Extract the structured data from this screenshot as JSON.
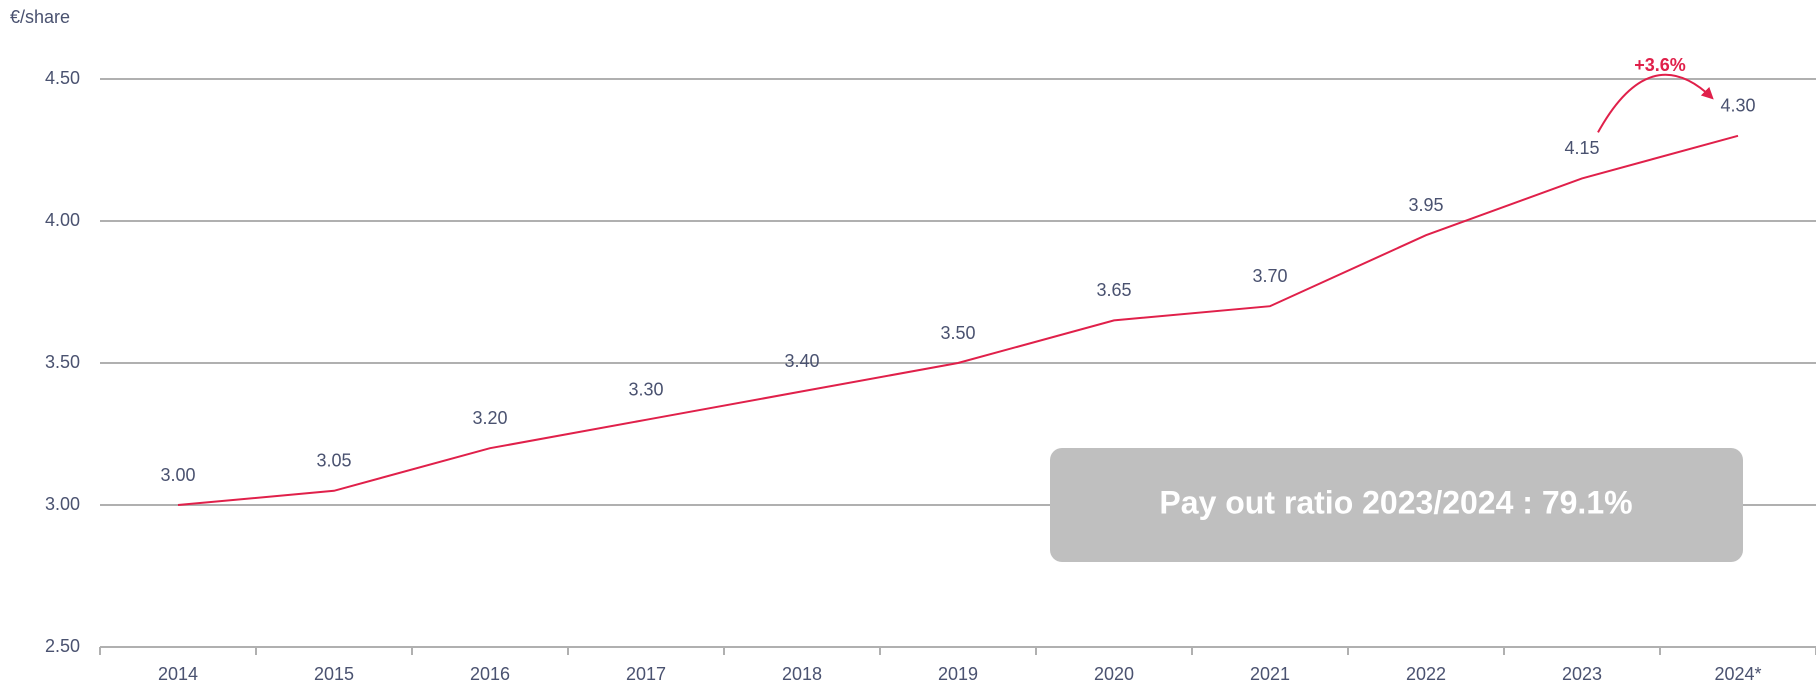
{
  "chart_data": {
    "type": "line",
    "y_axis_label": "€/share",
    "categories": [
      "2014",
      "2015",
      "2016",
      "2017",
      "2018",
      "2019",
      "2020",
      "2021",
      "2022",
      "2023",
      "2024*"
    ],
    "values": [
      3.0,
      3.05,
      3.2,
      3.3,
      3.4,
      3.5,
      3.65,
      3.7,
      3.95,
      4.15,
      4.3
    ],
    "value_labels": [
      "3.00",
      "3.05",
      "3.20",
      "3.30",
      "3.40",
      "3.50",
      "3.65",
      "3.70",
      "3.95",
      "4.15",
      "4.30"
    ],
    "color": "#e0204a",
    "ylim": [
      2.5,
      4.5
    ],
    "yticks": [
      {
        "value": 2.5,
        "label": "2.50"
      },
      {
        "value": 3.0,
        "label": "3.00"
      },
      {
        "value": 3.5,
        "label": "3.50"
      },
      {
        "value": 4.0,
        "label": "4.00"
      },
      {
        "value": 4.5,
        "label": "4.50"
      }
    ],
    "grid": true,
    "annotations": [
      "+3.6%",
      "Pay out ratio 2023/2024 : 79.1%"
    ]
  }
}
